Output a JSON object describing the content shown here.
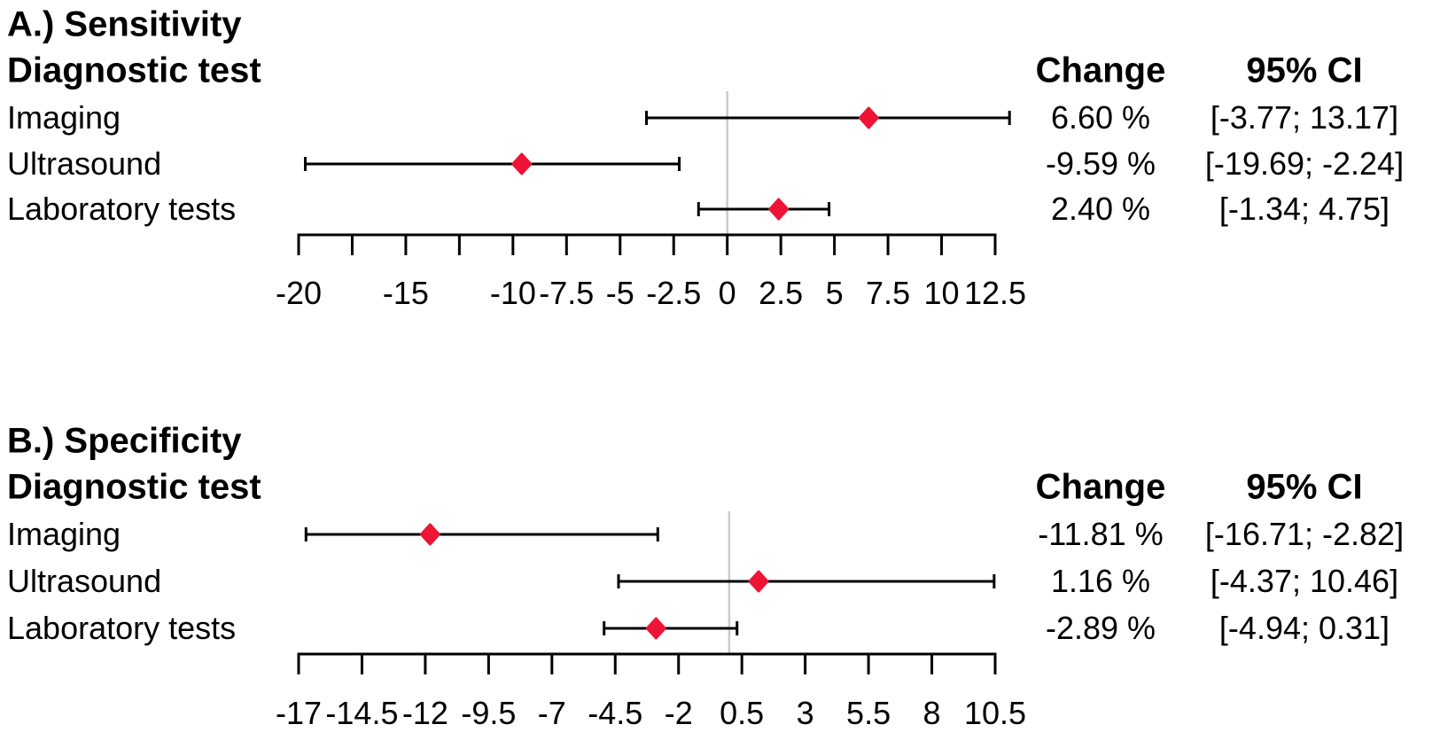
{
  "figure": {
    "background": "#ffffff",
    "colors": {
      "marker": "#ed1436",
      "ci_line": "#000000",
      "axis": "#000000",
      "reference_line": "#cbcbcb",
      "text": "#000000"
    }
  },
  "chart_data": [
    {
      "type": "forest",
      "panel_label": "A.) Sensitivity",
      "columns": {
        "test": "Diagnostic test",
        "change": "Change",
        "ci": "95% CI"
      },
      "rows": [
        {
          "label": "Imaging",
          "change": "6.60 %",
          "ci": "[-3.77; 13.17]",
          "estimate": 6.6,
          "ci_low": -3.77,
          "ci_high": 13.17
        },
        {
          "label": "Ultrasound",
          "change": "-9.59 %",
          "ci": "[-19.69; -2.24]",
          "estimate": -9.59,
          "ci_low": -19.69,
          "ci_high": -2.24
        },
        {
          "label": "Laboratory tests",
          "change": "2.40 %",
          "ci": "[-1.34; 4.75]",
          "estimate": 2.4,
          "ci_low": -1.34,
          "ci_high": 4.75
        }
      ],
      "axis": {
        "min": -20,
        "max": 12.5,
        "tick_step": 2.5,
        "ticks": [
          -20,
          -17.5,
          -15,
          -12.5,
          -10,
          -7.5,
          -5,
          -2.5,
          0,
          2.5,
          5,
          7.5,
          10,
          12.5
        ],
        "tick_labels": [
          "-20",
          "",
          "-15",
          "",
          "-10",
          "-7.5",
          "-5",
          "-2.5",
          "0",
          "2.5",
          "5",
          "7.5",
          "10",
          "12.5"
        ],
        "reference_value": 0,
        "grid": false
      }
    },
    {
      "type": "forest",
      "panel_label": "B.) Specificity",
      "columns": {
        "test": "Diagnostic test",
        "change": "Change",
        "ci": "95% CI"
      },
      "rows": [
        {
          "label": "Imaging",
          "change": "-11.81 %",
          "ci": "[-16.71; -2.82]",
          "estimate": -11.81,
          "ci_low": -16.71,
          "ci_high": -2.82
        },
        {
          "label": "Ultrasound",
          "change": "1.16 %",
          "ci": "[-4.37; 10.46]",
          "estimate": 1.16,
          "ci_low": -4.37,
          "ci_high": 10.46
        },
        {
          "label": "Laboratory tests",
          "change": "-2.89 %",
          "ci": "[-4.94; 0.31]",
          "estimate": -2.89,
          "ci_low": -4.94,
          "ci_high": 0.31
        }
      ],
      "axis": {
        "min": -17,
        "max": 10.5,
        "tick_step": 2.5,
        "ticks": [
          -17,
          -14.5,
          -12,
          -9.5,
          -7,
          -4.5,
          -2,
          0.5,
          3,
          5.5,
          8,
          10.5
        ],
        "tick_labels": [
          "-17",
          "-14.5",
          "-12",
          "-9.5",
          "-7",
          "-4.5",
          "-2",
          "0.5",
          "3",
          "5.5",
          "8",
          "10.5"
        ],
        "reference_value": 0,
        "grid": false
      }
    }
  ]
}
